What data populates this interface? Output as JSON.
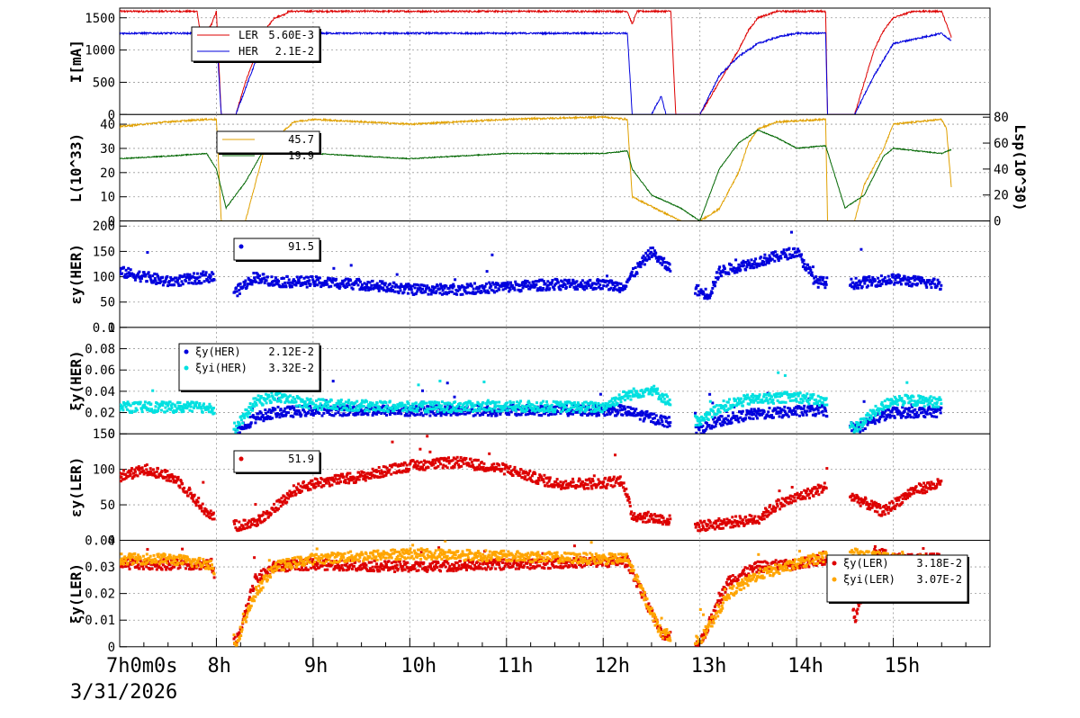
{
  "date_label": "3/31/2026",
  "x_ticks": [
    "7h0m0s",
    "8h",
    "9h",
    "10h",
    "11h",
    "12h",
    "13h",
    "14h",
    "15h"
  ],
  "colors": {
    "ler": "#dd0000",
    "her": "#0000dd",
    "lum_gold": "#e0a000",
    "lum_green": "#006600",
    "cyan": "#00e0e0",
    "orange": "#ffa500",
    "grid": "#999999"
  },
  "chart_data": [
    {
      "type": "line",
      "ylabel": "I[mA]",
      "ylim": [
        0,
        1650
      ],
      "yticks": [
        "0",
        "500",
        "1000",
        "1500"
      ],
      "xlim_hours": [
        7.0,
        16.0
      ],
      "legend": [
        {
          "name": "LER",
          "value": "5.60E-3"
        },
        {
          "name": "HER",
          "value": "2.1E-2"
        }
      ],
      "series": [
        {
          "name": "LER",
          "x": [
            7.0,
            7.8,
            7.85,
            7.9,
            7.95,
            8.0,
            8.05,
            8.1,
            8.2,
            8.3,
            8.4,
            8.5,
            8.6,
            8.7,
            8.75,
            8.8,
            12.25,
            12.3,
            12.35,
            12.7,
            12.75,
            12.8,
            13.0,
            13.2,
            13.4,
            13.5,
            13.6,
            13.8,
            14.0,
            14.3,
            14.32,
            14.6,
            14.7,
            14.8,
            14.9,
            15.0,
            15.2,
            15.5,
            15.55,
            15.6
          ],
          "values": [
            1600,
            1600,
            1100,
            1300,
            1400,
            1600,
            0,
            0,
            0,
            500,
            900,
            1300,
            1500,
            1550,
            1600,
            1600,
            1600,
            1400,
            1600,
            1600,
            0,
            0,
            0,
            500,
            1000,
            1300,
            1500,
            1600,
            1600,
            1600,
            0,
            0,
            500,
            1000,
            1300,
            1500,
            1600,
            1600,
            1400,
            1200
          ]
        },
        {
          "name": "HER",
          "x": [
            7.0,
            8.0,
            8.05,
            8.1,
            8.2,
            8.3,
            8.4,
            8.5,
            8.6,
            8.8,
            12.25,
            12.3,
            12.5,
            12.55,
            12.6,
            12.65,
            13.0,
            13.1,
            13.2,
            13.4,
            13.6,
            13.8,
            14.0,
            14.3,
            14.32,
            14.6,
            14.8,
            15.0,
            15.5,
            15.55,
            15.6
          ],
          "values": [
            1260,
            1260,
            0,
            0,
            0,
            400,
            800,
            1100,
            1250,
            1260,
            1260,
            0,
            0,
            150,
            280,
            0,
            0,
            300,
            600,
            900,
            1100,
            1200,
            1260,
            1260,
            0,
            0,
            600,
            1100,
            1260,
            1200,
            1150
          ]
        }
      ]
    },
    {
      "type": "line",
      "ylabel": "L(10^33)",
      "ylabel_right": "Lsp(10^30)",
      "ylim": [
        0,
        44
      ],
      "yticks": [
        "0",
        "10",
        "20",
        "30",
        "40"
      ],
      "y2lim": [
        0,
        82
      ],
      "y2ticks": [
        "0",
        "20",
        "40",
        "60",
        "80"
      ],
      "legend": [
        {
          "name": "L",
          "value": "45.7"
        },
        {
          "name": "Lsp",
          "value": "19.9"
        }
      ],
      "series": [
        {
          "name": "L",
          "x": [
            7.0,
            7.5,
            7.9,
            8.0,
            8.05,
            8.2,
            8.3,
            8.5,
            8.8,
            9.0,
            10.0,
            11.0,
            12.0,
            12.25,
            12.3,
            12.8,
            13.0,
            13.2,
            13.4,
            13.5,
            13.6,
            13.8,
            14.3,
            14.32,
            14.6,
            14.7,
            14.9,
            15.0,
            15.5,
            15.55,
            15.6
          ],
          "values": [
            39,
            41,
            42,
            42,
            0,
            0,
            0,
            30,
            41,
            42,
            40,
            42,
            43,
            42,
            10,
            0,
            0,
            5,
            20,
            32,
            38,
            41,
            42,
            0,
            0,
            15,
            30,
            40,
            42,
            38,
            14
          ]
        },
        {
          "name": "Lsp",
          "x": [
            7.0,
            7.5,
            7.9,
            8.0,
            8.1,
            8.3,
            8.5,
            8.8,
            9.0,
            10.0,
            11.0,
            12.0,
            12.25,
            12.3,
            12.5,
            12.8,
            13.0,
            13.2,
            13.4,
            13.6,
            13.8,
            14.0,
            14.3,
            14.5,
            14.7,
            14.9,
            15.0,
            15.5,
            15.6
          ],
          "values": [
            48,
            50,
            52,
            40,
            10,
            30,
            56,
            54,
            52,
            48,
            52,
            52,
            54,
            40,
            20,
            10,
            0,
            40,
            60,
            70,
            64,
            56,
            58,
            10,
            20,
            50,
            56,
            52,
            55
          ]
        }
      ]
    },
    {
      "type": "scatter",
      "ylabel": "εy(HER)",
      "ylim": [
        0,
        210
      ],
      "yticks": [
        "0",
        "50",
        "100",
        "150",
        "200"
      ],
      "legend": [
        {
          "name": "εy(HER)",
          "value": "91.5"
        }
      ],
      "series": [
        {
          "name": "εy(HER)",
          "x": [
            7.0,
            7.5,
            7.95,
            8.2,
            8.4,
            8.6,
            9.0,
            9.5,
            10.0,
            10.5,
            11.0,
            11.5,
            12.0,
            12.2,
            12.5,
            12.6,
            13.0,
            13.1,
            13.2,
            13.4,
            13.6,
            13.8,
            14.0,
            14.2,
            14.5,
            15.0,
            15.5
          ],
          "values": [
            110,
            90,
            100,
            70,
            100,
            90,
            90,
            85,
            75,
            75,
            80,
            85,
            85,
            80,
            150,
            130,
            70,
            65,
            110,
            120,
            130,
            140,
            150,
            90,
            85,
            95,
            85
          ]
        }
      ]
    },
    {
      "type": "scatter",
      "ylabel": "ξy(HER)",
      "ylim": [
        0,
        0.1
      ],
      "yticks": [
        "0",
        "0.02",
        "0.04",
        "0.06",
        "0.08",
        "0.1"
      ],
      "legend": [
        {
          "name": "ξy(HER)",
          "value": "2.12E-2"
        },
        {
          "name": "ξyi(HER)",
          "value": "3.32E-2"
        }
      ],
      "series": [
        {
          "name": "ξy(HER)",
          "x": [
            8.2,
            8.4,
            8.6,
            9.0,
            10.0,
            11.0,
            12.0,
            12.2,
            12.5,
            13.0,
            13.2,
            13.5,
            14.0,
            14.3,
            14.6,
            14.8,
            15.0,
            15.5
          ],
          "values": [
            0.002,
            0.015,
            0.02,
            0.022,
            0.022,
            0.022,
            0.022,
            0.022,
            0.015,
            0.004,
            0.012,
            0.018,
            0.021,
            0.022,
            0.004,
            0.014,
            0.02,
            0.021
          ]
        },
        {
          "name": "ξyi(HER)",
          "x": [
            7.0,
            7.5,
            7.95,
            8.2,
            8.4,
            8.6,
            9.0,
            10.0,
            11.0,
            12.0,
            12.2,
            12.5,
            13.0,
            13.2,
            13.5,
            14.0,
            14.3,
            14.6,
            14.8,
            15.0,
            15.5
          ],
          "values": [
            0.025,
            0.025,
            0.025,
            0.005,
            0.03,
            0.035,
            0.028,
            0.025,
            0.026,
            0.025,
            0.035,
            0.042,
            0.01,
            0.025,
            0.032,
            0.035,
            0.03,
            0.005,
            0.02,
            0.032,
            0.03
          ]
        }
      ]
    },
    {
      "type": "scatter",
      "ylabel": "εy(LER)",
      "ylim": [
        0,
        150
      ],
      "yticks": [
        "0",
        "50",
        "100",
        "150"
      ],
      "legend": [
        {
          "name": "εy(LER)",
          "value": "51.9"
        }
      ],
      "series": [
        {
          "name": "εy(LER)",
          "x": [
            7.0,
            7.3,
            7.6,
            7.9,
            8.2,
            8.4,
            8.6,
            8.8,
            9.0,
            9.5,
            10.0,
            10.5,
            11.0,
            11.5,
            12.0,
            12.2,
            12.3,
            12.6,
            13.0,
            13.3,
            13.6,
            13.8,
            14.0,
            14.3,
            14.6,
            14.9,
            15.2,
            15.5
          ],
          "values": [
            90,
            100,
            85,
            40,
            20,
            25,
            45,
            70,
            80,
            90,
            105,
            110,
            100,
            80,
            80,
            85,
            35,
            30,
            20,
            25,
            30,
            50,
            60,
            75,
            60,
            40,
            70,
            80
          ]
        }
      ]
    },
    {
      "type": "scatter",
      "ylabel": "ξy(LER)",
      "ylim": [
        0,
        0.04
      ],
      "yticks": [
        "0",
        "0.01",
        "0.02",
        "0.03",
        "0.04"
      ],
      "legend": [
        {
          "name": "ξy(LER)",
          "value": "3.18E-2"
        },
        {
          "name": "ξyi(LER)",
          "value": "3.07E-2"
        }
      ],
      "series": [
        {
          "name": "ξy(LER)",
          "x": [
            7.0,
            7.5,
            7.95,
            8.2,
            8.4,
            8.6,
            9.0,
            10.0,
            11.0,
            12.0,
            12.25,
            12.6,
            13.0,
            13.3,
            13.6,
            14.0,
            14.3,
            14.5,
            14.6,
            14.8,
            15.0,
            15.5
          ],
          "values": [
            0.031,
            0.031,
            0.031,
            0.001,
            0.025,
            0.03,
            0.031,
            0.03,
            0.031,
            0.032,
            0.032,
            0.005,
            0.001,
            0.025,
            0.03,
            0.031,
            0.033,
            0.035,
            0.01,
            0.036,
            0.033,
            0.033
          ]
        },
        {
          "name": "ξyi(LER)",
          "x": [
            7.0,
            7.5,
            7.95,
            8.2,
            8.4,
            8.6,
            9.0,
            10.0,
            11.0,
            12.0,
            12.25,
            12.6,
            13.0,
            13.3,
            13.6,
            14.0,
            14.3,
            14.6,
            14.8,
            15.0,
            15.5
          ],
          "values": [
            0.033,
            0.033,
            0.031,
            0.001,
            0.02,
            0.03,
            0.033,
            0.035,
            0.034,
            0.033,
            0.033,
            0.005,
            0.002,
            0.02,
            0.027,
            0.031,
            0.034,
            0.035,
            0.034,
            0.033,
            0.032
          ]
        }
      ]
    }
  ]
}
